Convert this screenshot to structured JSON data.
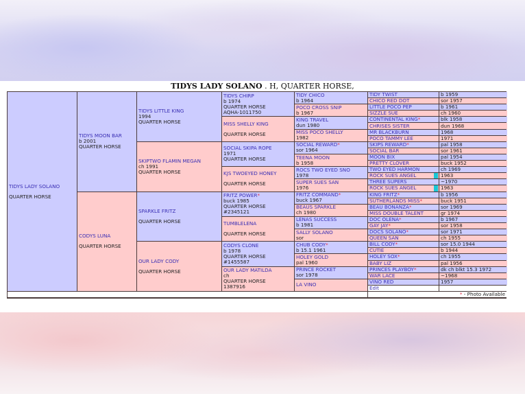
{
  "title": {
    "name": "TIDYS LADY SOLANO",
    "rest": " . H, QUARTER HORSE,"
  },
  "colors": {
    "sire_bg": "#ccccff",
    "dam_bg": "#ffcccc",
    "name_text": "#3a2fb4",
    "star": "#e0304a",
    "marker": "#19c7d6"
  },
  "subject": {
    "name": "TIDYS LADY SOLANO",
    "lines": [
      "QUARTER HORSE"
    ]
  },
  "gen1": [
    {
      "name": "TIDYS MOON BAR",
      "lines": [
        "b 2001",
        "QUARTER HORSE"
      ]
    },
    {
      "name": "CODYS LUNA",
      "lines": [
        "QUARTER HORSE"
      ]
    }
  ],
  "gen2": [
    {
      "name": "TIDYS LITTLE KING",
      "lines": [
        "1994",
        "QUARTER HORSE"
      ]
    },
    {
      "name": "SKIPTWO FLAMIN MEGAN",
      "lines": [
        "ch 1991",
        "QUARTER HORSE"
      ]
    },
    {
      "name": "SPARKLE FRITZ",
      "lines": [
        "QUARTER HORSE"
      ]
    },
    {
      "name": "OUR LADY CODY",
      "lines": [
        "QUARTER HORSE"
      ]
    }
  ],
  "gen3": [
    {
      "name": "TIDYS CHIRP",
      "lines": [
        "b 1974",
        "QUARTER HORSE",
        "AQHA-1011750"
      ]
    },
    {
      "name": "MISS SHELLY KING",
      "lines": [
        "QUARTER HORSE"
      ]
    },
    {
      "name": "SOCIAL SKIPA ROPE",
      "lines": [
        "1971",
        "QUARTER HORSE"
      ]
    },
    {
      "name": "KJS TWOEYED HONEY",
      "lines": [
        "QUARTER HORSE"
      ]
    },
    {
      "name": "FRITZ POWER",
      "star": "*",
      "lines": [
        "buck 1985",
        "QUARTER HORSE",
        "#2345121"
      ]
    },
    {
      "name": "TUMBLELENA",
      "lines": [
        "QUARTER HORSE"
      ]
    },
    {
      "name": "CODYS CLONE",
      "lines": [
        "b 1978",
        "QUARTER HORSE",
        "#1455587"
      ]
    },
    {
      "name": "OUR LADY MATILDA",
      "lines": [
        "ch",
        "QUARTER HORSE",
        "1387916"
      ]
    }
  ],
  "gen4": [
    {
      "name": "TIDY CHICO",
      "lines": [
        "b 1964"
      ]
    },
    {
      "name": "POCO CROSS SNIP",
      "lines": [
        "b 1967"
      ]
    },
    {
      "name": "KING TRAVEL",
      "lines": [
        "dun 1980"
      ]
    },
    {
      "name": "MISS POCO SHELLY",
      "lines": [
        "1982"
      ]
    },
    {
      "name": "SOCIAL REWARD",
      "star": "*",
      "lines": [
        "sor 1964"
      ]
    },
    {
      "name": "TEENA MOON",
      "lines": [
        "b 1958"
      ]
    },
    {
      "name": "ROCS TWO EYED SNO",
      "lines": [
        "1978"
      ]
    },
    {
      "name": "SUPER SUES SAN",
      "lines": [
        "1976"
      ]
    },
    {
      "name": "FRITZ COMMAND",
      "star": "*",
      "lines": [
        "buck 1967"
      ]
    },
    {
      "name": "BEAUS SPARKLE",
      "lines": [
        "ch 1980"
      ]
    },
    {
      "name": "LENAS SUCCESS",
      "lines": [
        "b 1981"
      ]
    },
    {
      "name": "SALLY SOLANO",
      "lines": [
        "sor"
      ]
    },
    {
      "name": "CHUB CODY",
      "star": "*",
      "lines": [
        "b 15.1 1961"
      ]
    },
    {
      "name": "HOLEY GOLD",
      "lines": [
        "pal 1960"
      ]
    },
    {
      "name": "PRINCE ROCKET",
      "lines": [
        "sor 1978"
      ]
    },
    {
      "name": "LA VINO",
      "lines": []
    }
  ],
  "gen5": [
    {
      "name": "TIDY TWIST",
      "info": "b 1959"
    },
    {
      "name": "CHICO RED DOT",
      "info": "sor 1957"
    },
    {
      "name": "LITTLE POCO PEP",
      "info": "b 1961"
    },
    {
      "name": "SIZZLE SUE",
      "info": "ch 1960"
    },
    {
      "name": "CONTINENTAL KING",
      "star": "*",
      "info": "blk 1958"
    },
    {
      "name": "CHRISES SISTER",
      "info": "dun 1968"
    },
    {
      "name": "MR BLACKBURN",
      "info": "1968"
    },
    {
      "name": "POCO TAMMY LEE",
      "info": "1971"
    },
    {
      "name": "SKIPS REWARD",
      "star": "*",
      "info": "pal 1958"
    },
    {
      "name": "SOCIAL BAR",
      "info": "sor 1961"
    },
    {
      "name": "MOON BIX",
      "info": "pal 1954"
    },
    {
      "name": "PRETTY CLOVER",
      "info": "buck 1952"
    },
    {
      "name": "TWO EYED HARMON",
      "info": "ch 1969"
    },
    {
      "name": "ROCK SUES ANGEL",
      "info": "1963",
      "marker": true
    },
    {
      "name": "THREE SUPERS",
      "info": "~1970"
    },
    {
      "name": "ROCK SUES ANGEL",
      "info": "1963",
      "marker": true
    },
    {
      "name": "KING FRITZ",
      "star": "*",
      "info": "b 1956"
    },
    {
      "name": "SUTHERLANDS MISS",
      "star": "*",
      "info": "buck 1951"
    },
    {
      "name": "BEAU BONANZA",
      "star": "*",
      "info": "sor 1969"
    },
    {
      "name": "MISS DOUBLE TALENT",
      "info": "gr 1974"
    },
    {
      "name": "DOC OLENA",
      "star": "*",
      "info": "b 1967"
    },
    {
      "name": "GAY JAY",
      "star": "*",
      "info": "sor 1958"
    },
    {
      "name": "DOCS SOLANO",
      "star": "*",
      "info": "sor 1971"
    },
    {
      "name": "QUEEN SAN",
      "info": "ch 1955"
    },
    {
      "name": "BILL CODY",
      "star": "*",
      "info": "sor 15.0 1944"
    },
    {
      "name": "CUTIE",
      "info": "b 1944"
    },
    {
      "name": "HOLEY SOX",
      "star": "*",
      "info": "ch 1955"
    },
    {
      "name": "BABY LIZ",
      "info": "pal 1956"
    },
    {
      "name": "PRINCES PLAYBOY",
      "star": "*",
      "info": "dk ch blkt 15.3 1972"
    },
    {
      "name": "WAR LACE",
      "info": "~1968"
    },
    {
      "name": "VINO RED",
      "info": "1957"
    }
  ],
  "edit_label": "Edit",
  "footer": {
    "star": "*",
    "text": " - Photo Available"
  }
}
